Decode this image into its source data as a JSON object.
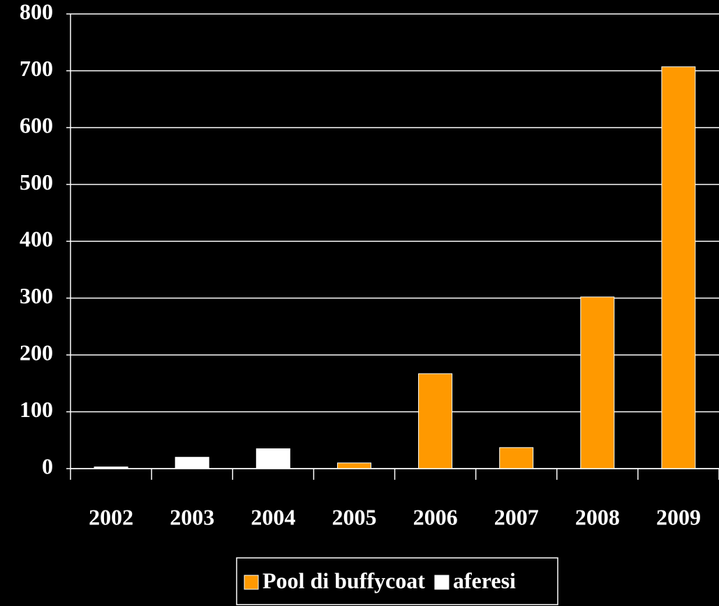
{
  "chart_data": {
    "type": "bar",
    "stacked": true,
    "categories": [
      "2002",
      "2003",
      "2004",
      "2005",
      "2006",
      "2007",
      "2008",
      "2009"
    ],
    "series": [
      {
        "name": "Pool di buffycoat",
        "color": "#ff9900",
        "values": [
          null,
          null,
          null,
          10,
          167,
          37,
          302,
          707
        ]
      },
      {
        "name": "aferesi",
        "color": "#ffffff",
        "values": [
          3,
          20,
          35,
          null,
          null,
          null,
          null,
          null
        ]
      }
    ],
    "ylim": [
      0,
      800
    ],
    "yticks": [
      0,
      100,
      200,
      300,
      400,
      500,
      600,
      700,
      800
    ],
    "grid": true
  }
}
